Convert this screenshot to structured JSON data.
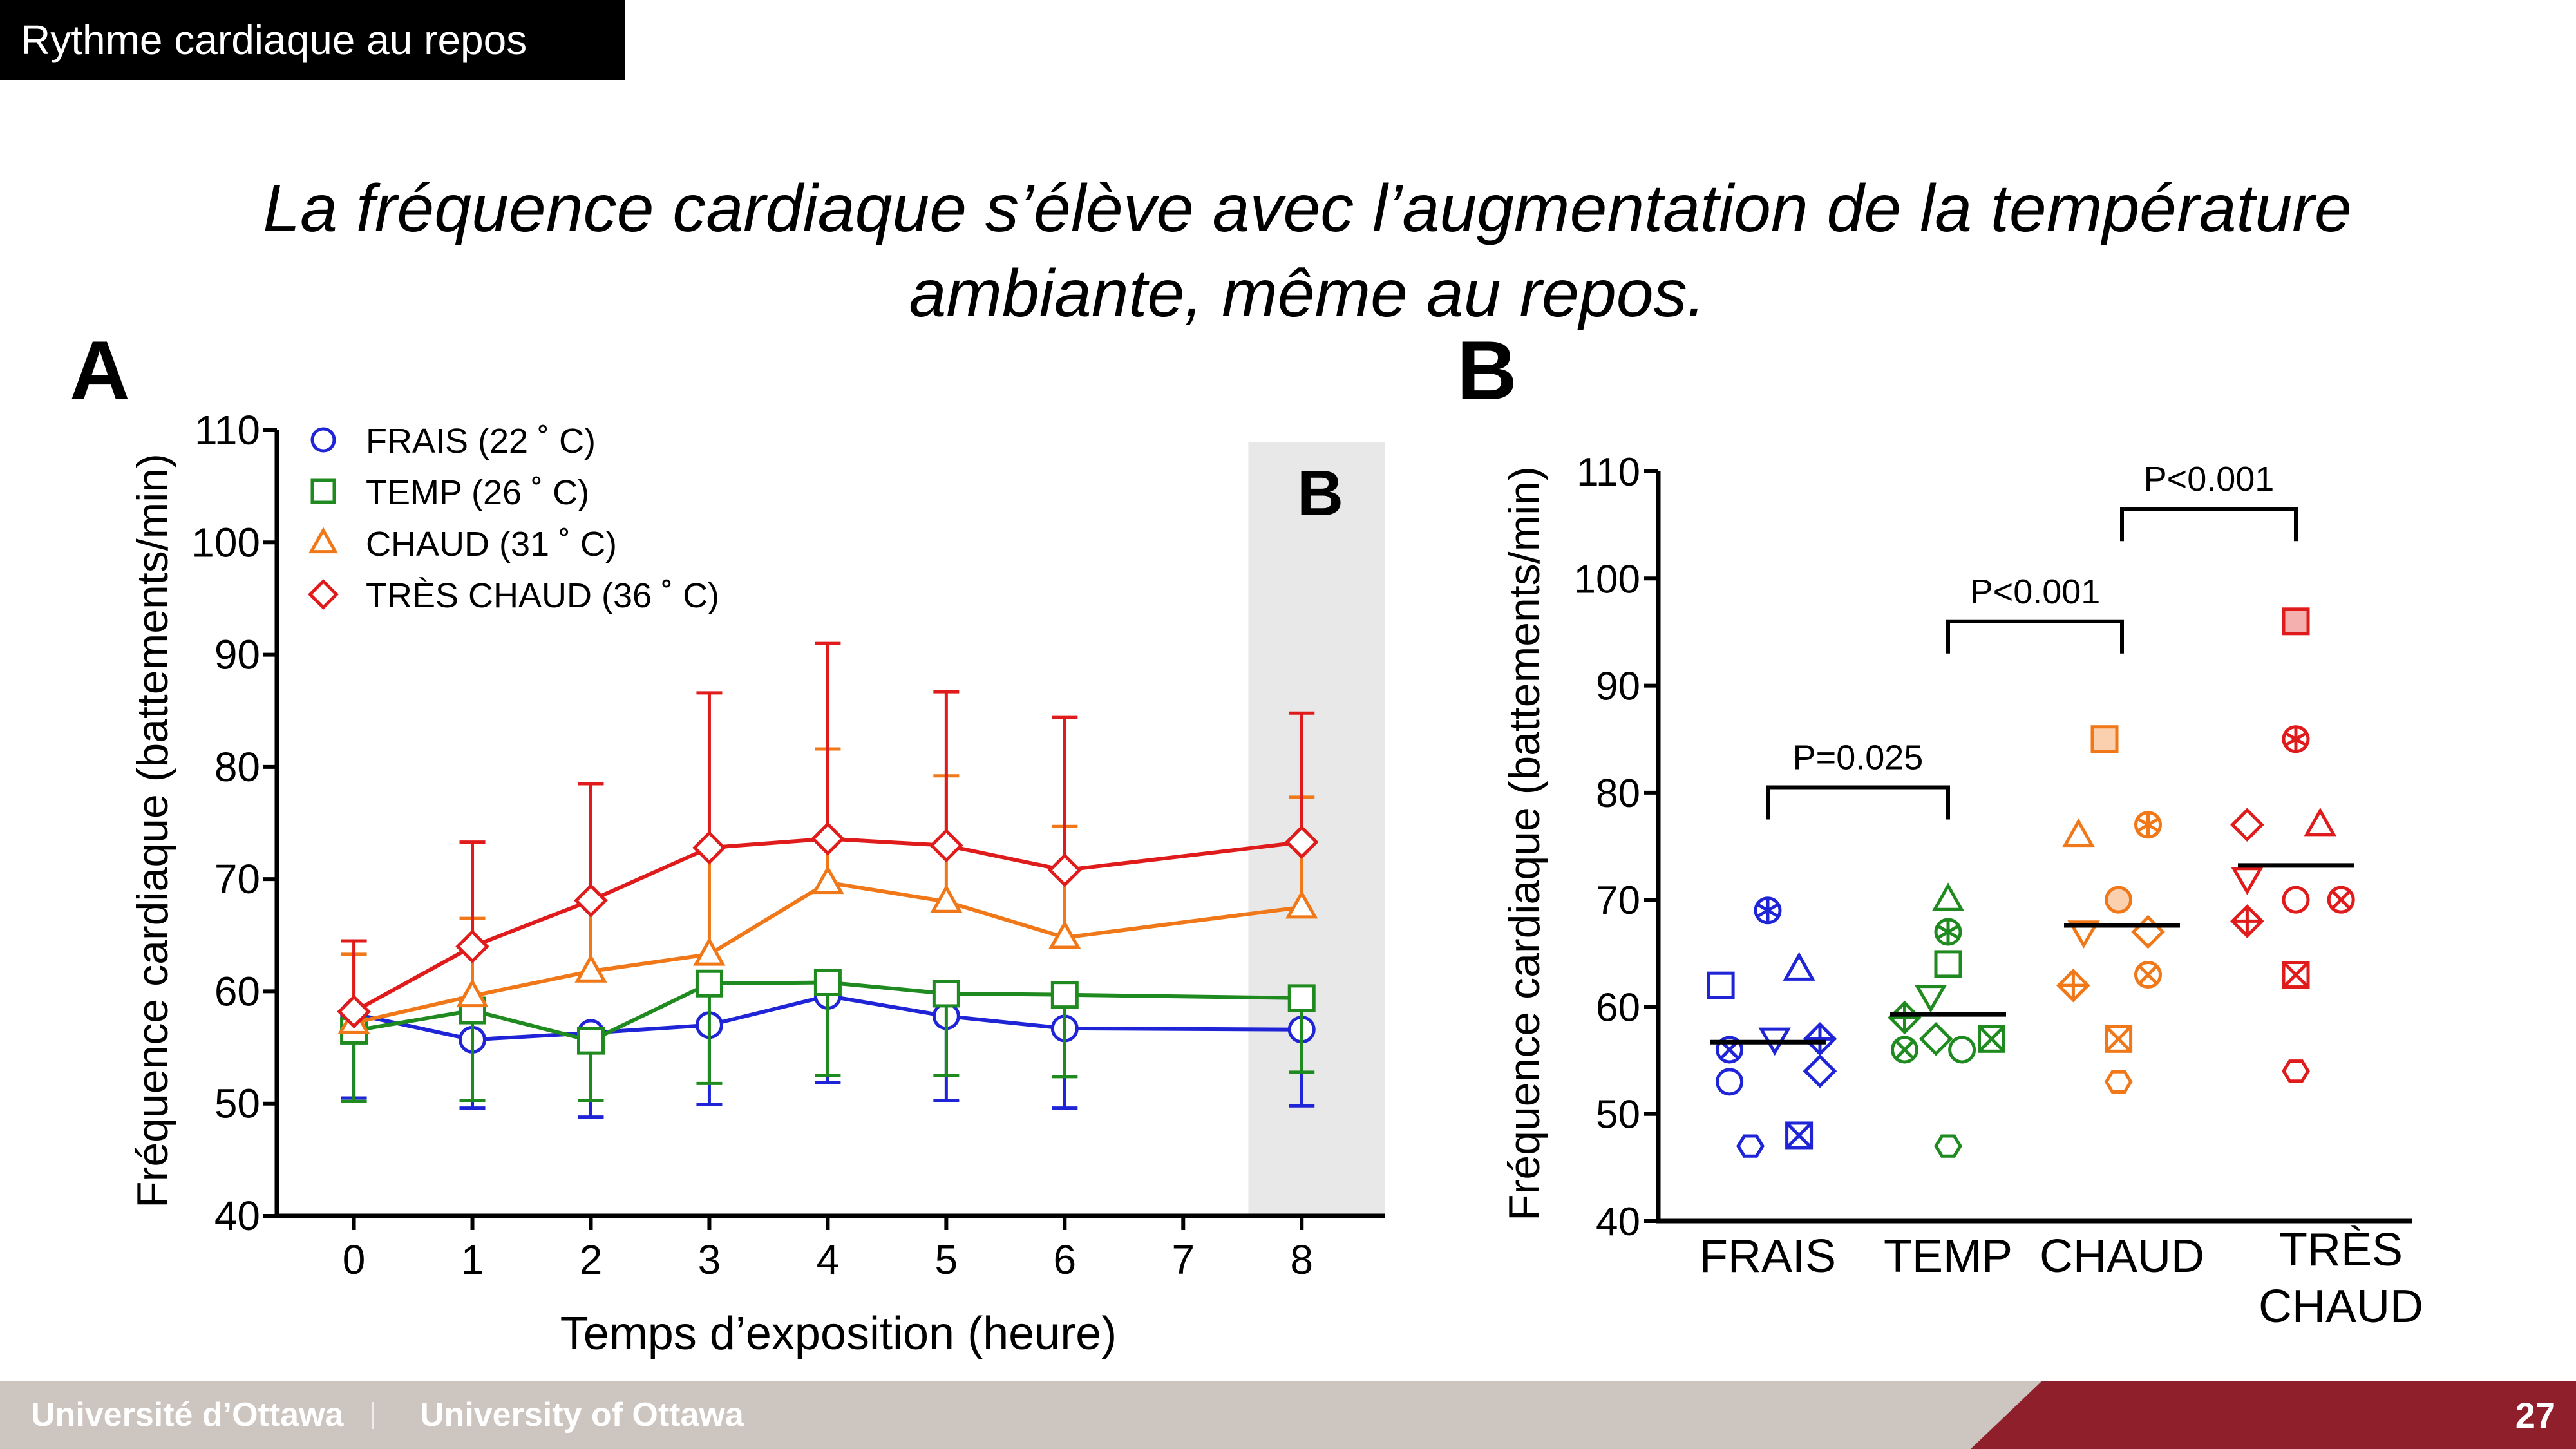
{
  "slide_label": "Rythme cardiaque au repos",
  "headline": {
    "line1": "La fréquence cardiaque s’élève avec l’augmentation de la température",
    "line2": "ambiante, même au repos."
  },
  "footer": {
    "left_fr": "Université d’Ottawa",
    "left_en": "University of Ottawa",
    "page_number": "27"
  },
  "colors": {
    "FRAIS": "#1f25d6",
    "TEMP": "#1f8a1f",
    "CHAUD": "#f07818",
    "TRES_CHAUD": "#e01b1b",
    "highlight": "#e8e8e8"
  },
  "chart_data": [
    {
      "panel_letter": "A",
      "inset_letter": "B",
      "type": "line",
      "xlabel": "Temps d’exposition (heure)",
      "ylabel": "Fréquence cardiaque (battements/min)",
      "xlim": [
        -0.65,
        8.7
      ],
      "ylim": [
        40,
        110
      ],
      "xticks": [
        0,
        1,
        2,
        3,
        4,
        5,
        6,
        7,
        8
      ],
      "yticks": [
        40,
        50,
        60,
        70,
        80,
        90,
        100,
        110
      ],
      "highlight_x_range": [
        7.55,
        8.7
      ],
      "legend_position": "top-left",
      "series": [
        {
          "name": "FRAIS (22 ˚ C)",
          "key": "FRAIS",
          "marker": "circle",
          "x": [
            0,
            1,
            2,
            3,
            4,
            5,
            6,
            8
          ],
          "y": [
            58,
            55.7,
            56.3,
            57,
            59.6,
            57.8,
            56.7,
            56.6
          ],
          "err_lo": [
            50.5,
            49.6,
            48.8,
            49.9,
            51.9,
            50.3,
            49.6,
            49.8
          ],
          "err_hi": [
            null,
            null,
            null,
            null,
            null,
            null,
            null,
            null
          ]
        },
        {
          "name": "TEMP (26 ˚ C)",
          "key": "TEMP",
          "marker": "square",
          "x": [
            0,
            1,
            2,
            3,
            4,
            5,
            6,
            8
          ],
          "y": [
            56.5,
            58.3,
            55.6,
            60.7,
            60.8,
            59.8,
            59.7,
            59.4
          ],
          "err_lo": [
            50.2,
            50.3,
            50.3,
            51.8,
            52.5,
            52.5,
            52.4,
            52.8
          ],
          "err_hi": [
            null,
            null,
            null,
            null,
            null,
            null,
            null,
            null
          ]
        },
        {
          "name": "CHAUD (31 ˚ C)",
          "key": "CHAUD",
          "marker": "triangle",
          "x": [
            0,
            1,
            2,
            3,
            4,
            5,
            6,
            8
          ],
          "y": [
            57.2,
            59.6,
            61.8,
            63.3,
            69.7,
            68,
            64.8,
            67.5
          ],
          "err_lo": [
            null,
            null,
            null,
            null,
            null,
            null,
            null,
            null
          ],
          "err_hi": [
            63.3,
            66.5,
            68.2,
            72.8,
            81.6,
            79.2,
            74.7,
            77.3
          ]
        },
        {
          "name": "TRÈS CHAUD (36 ˚ C)",
          "key": "TRES_CHAUD",
          "marker": "diamond",
          "x": [
            0,
            1,
            2,
            3,
            4,
            5,
            6,
            8
          ],
          "y": [
            58.2,
            64,
            68.1,
            72.8,
            73.6,
            73,
            70.8,
            73.3
          ],
          "err_lo": [
            null,
            null,
            null,
            null,
            null,
            null,
            null,
            null
          ],
          "err_hi": [
            64.5,
            73.3,
            78.5,
            86.6,
            91,
            86.7,
            84.4,
            84.8
          ]
        }
      ]
    },
    {
      "panel_letter": "B",
      "type": "scatter",
      "ylabel": "Fréquence cardiaque (battements/min)",
      "ylim": [
        40,
        110
      ],
      "yticks": [
        40,
        50,
        60,
        70,
        80,
        90,
        100,
        110
      ],
      "categories": [
        "FRAIS",
        "TEMP",
        "CHAUD",
        "TRÈS CHAUD"
      ],
      "category_keys": [
        "FRAIS",
        "TEMP",
        "CHAUD",
        "TRES_CHAUD"
      ],
      "means": [
        56.7,
        59.3,
        67.6,
        73.2
      ],
      "groups": [
        {
          "key": "FRAIS",
          "points": [
            {
              "dx": 0,
              "y": 69,
              "m": "asterisk"
            },
            {
              "dx": -0.27,
              "y": 62,
              "m": "square"
            },
            {
              "dx": 0.18,
              "y": 63.5,
              "m": "triangle"
            },
            {
              "dx": -0.22,
              "y": 56,
              "m": "xcircle"
            },
            {
              "dx": 0.04,
              "y": 57,
              "m": "triangle-down"
            },
            {
              "dx": 0.3,
              "y": 57,
              "m": "diamond-plus"
            },
            {
              "dx": 0.3,
              "y": 54,
              "m": "diamond"
            },
            {
              "dx": -0.22,
              "y": 53,
              "m": "circle"
            },
            {
              "dx": -0.1,
              "y": 47,
              "m": "hexagon"
            },
            {
              "dx": 0.18,
              "y": 48,
              "m": "xsquare"
            }
          ]
        },
        {
          "key": "TEMP",
          "points": [
            {
              "dx": 0,
              "y": 70,
              "m": "triangle"
            },
            {
              "dx": 0,
              "y": 67,
              "m": "asterisk"
            },
            {
              "dx": 0,
              "y": 64,
              "m": "square"
            },
            {
              "dx": -0.1,
              "y": 61,
              "m": "triangle-down"
            },
            {
              "dx": -0.25,
              "y": 59,
              "m": "diamond-plus"
            },
            {
              "dx": -0.25,
              "y": 56,
              "m": "xcircle"
            },
            {
              "dx": -0.07,
              "y": 57,
              "m": "diamond"
            },
            {
              "dx": 0.08,
              "y": 56,
              "m": "circle"
            },
            {
              "dx": 0.25,
              "y": 57,
              "m": "xsquare"
            },
            {
              "dx": 0,
              "y": 47,
              "m": "hexagon"
            }
          ]
        },
        {
          "key": "CHAUD",
          "points": [
            {
              "dx": -0.1,
              "y": 85,
              "m": "square-fill"
            },
            {
              "dx": -0.25,
              "y": 76,
              "m": "triangle"
            },
            {
              "dx": 0.15,
              "y": 77,
              "m": "asterisk"
            },
            {
              "dx": -0.02,
              "y": 70,
              "m": "circle-fill"
            },
            {
              "dx": -0.22,
              "y": 67,
              "m": "triangle-down"
            },
            {
              "dx": 0.15,
              "y": 67,
              "m": "diamond"
            },
            {
              "dx": -0.28,
              "y": 62,
              "m": "diamond-plus"
            },
            {
              "dx": 0.15,
              "y": 63,
              "m": "xcircle"
            },
            {
              "dx": -0.02,
              "y": 57,
              "m": "xsquare"
            },
            {
              "dx": -0.02,
              "y": 53,
              "m": "hexagon"
            }
          ]
        },
        {
          "key": "TRES_CHAUD",
          "points": [
            {
              "dx": 0,
              "y": 96,
              "m": "square-fill"
            },
            {
              "dx": 0,
              "y": 85,
              "m": "asterisk"
            },
            {
              "dx": -0.28,
              "y": 77,
              "m": "diamond"
            },
            {
              "dx": 0.14,
              "y": 77,
              "m": "triangle"
            },
            {
              "dx": -0.28,
              "y": 72,
              "m": "triangle-down"
            },
            {
              "dx": 0,
              "y": 70,
              "m": "circle"
            },
            {
              "dx": 0.26,
              "y": 70,
              "m": "xcircle"
            },
            {
              "dx": -0.28,
              "y": 68,
              "m": "diamond-plus"
            },
            {
              "dx": 0,
              "y": 63,
              "m": "xsquare"
            },
            {
              "dx": 0,
              "y": 54,
              "m": "hexagon"
            }
          ]
        }
      ],
      "comparisons": [
        {
          "from": 0,
          "to": 1,
          "y": 80.5,
          "label": "P=0.025"
        },
        {
          "from": 1,
          "to": 2,
          "y": 96,
          "label": "P<0.001"
        },
        {
          "from": 2,
          "to": 3,
          "y": 106.5,
          "label": "P<0.001"
        }
      ]
    }
  ]
}
